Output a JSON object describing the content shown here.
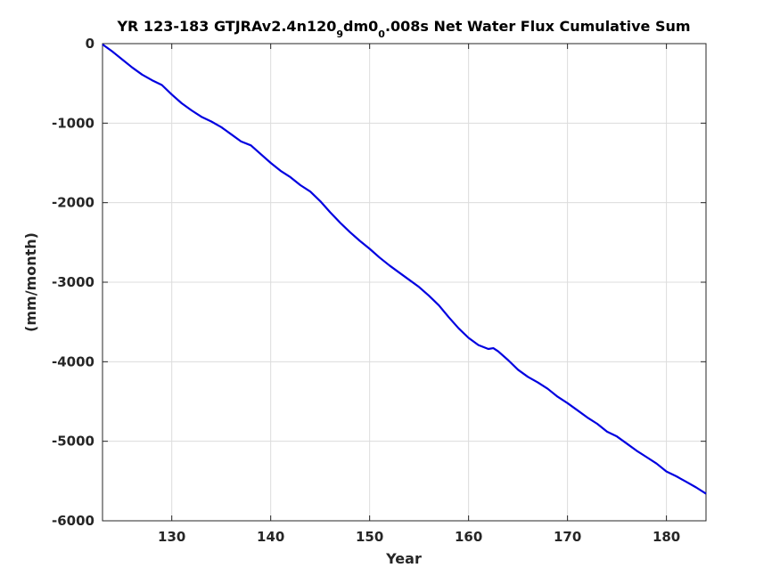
{
  "chart_data": {
    "type": "line",
    "title": {
      "prefix": "YR 123-183 GTJRAv2.4n120",
      "sub1": "9",
      "mid": "dm0",
      "sub2": "0",
      "suffix": ".008s Net Water Flux Cumulative Sum"
    },
    "xlabel": "Year",
    "ylabel": "(mm/month)",
    "xlim": [
      123,
      184
    ],
    "ylim": [
      -6000,
      0
    ],
    "xticks": [
      130,
      140,
      150,
      160,
      170,
      180
    ],
    "yticks": [
      0,
      -1000,
      -2000,
      -3000,
      -4000,
      -5000,
      -6000
    ],
    "grid": true,
    "line_color": "#0000e0",
    "series": [
      {
        "x": [
          123,
          124,
          125,
          126,
          127,
          128,
          129,
          130,
          131,
          132,
          133,
          134,
          135,
          136,
          137,
          138,
          139,
          140,
          141,
          142,
          143,
          144,
          145,
          146,
          147,
          148,
          149,
          150,
          151,
          152,
          153,
          154,
          155,
          156,
          157,
          158,
          159,
          160,
          161,
          162,
          162.5,
          163,
          164,
          165,
          166,
          167,
          168,
          169,
          170,
          171,
          172,
          173,
          174,
          175,
          176,
          177,
          178,
          179,
          180,
          181,
          182,
          183,
          184
        ],
        "y": [
          -10,
          -100,
          -200,
          -300,
          -390,
          -460,
          -520,
          -640,
          -750,
          -840,
          -920,
          -980,
          -1050,
          -1140,
          -1230,
          -1280,
          -1390,
          -1500,
          -1600,
          -1680,
          -1780,
          -1860,
          -1980,
          -2120,
          -2250,
          -2370,
          -2480,
          -2580,
          -2690,
          -2790,
          -2880,
          -2970,
          -3060,
          -3170,
          -3290,
          -3440,
          -3580,
          -3700,
          -3790,
          -3840,
          -3830,
          -3870,
          -3980,
          -4100,
          -4190,
          -4260,
          -4340,
          -4440,
          -4520,
          -4610,
          -4700,
          -4780,
          -4880,
          -4940,
          -5030,
          -5120,
          -5200,
          -5280,
          -5380,
          -5440,
          -5510,
          -5580,
          -5660
        ]
      }
    ]
  }
}
